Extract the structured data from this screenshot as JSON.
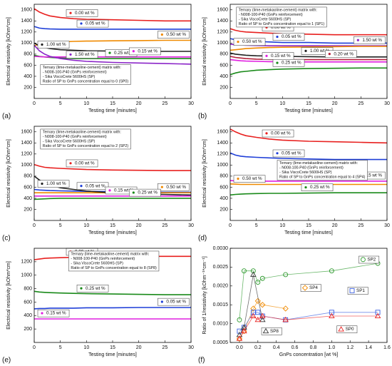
{
  "chart_data": [
    {
      "type": "line",
      "panel_label": "(a)",
      "x_label": "Testing time [minutes]",
      "y_label": "Electrical resistivity [kOhm*cm]",
      "xlim": [
        0,
        30
      ],
      "xticks": [
        0,
        5,
        10,
        15,
        20,
        25,
        30
      ],
      "ylim": [
        0,
        1700
      ],
      "yticks": [
        200,
        400,
        600,
        800,
        1000,
        1200,
        1400,
        1600
      ],
      "note": [
        "Ternary (lime-metakaoline-cement) matrix with:",
        "- N008-100-P40 (GnPs reinforcement)",
        "- Sika ViscoCrete 5600HS (SP)",
        "Ratio of SP to GnPs concentration equal to 0 (SP0)"
      ],
      "x": [
        0,
        1,
        2,
        3,
        5,
        7.5,
        10,
        15,
        20,
        25,
        30
      ],
      "series": [
        {
          "name": "0.00 wt %",
          "color": "#e8201f",
          "values": [
            1620,
            1560,
            1520,
            1490,
            1460,
            1440,
            1430,
            1420,
            1410,
            1400,
            1400
          ]
        },
        {
          "name": "0.05 wt %",
          "color": "#1f3fd8",
          "values": [
            1300,
            1270,
            1260,
            1255,
            1250,
            1250,
            1250,
            1250,
            1250,
            1250,
            1250
          ]
        },
        {
          "name": "0.50 wt %",
          "color": "#f08a00",
          "values": [
            950,
            980,
            1000,
            1010,
            1020,
            1030,
            1035,
            1040,
            1045,
            1050,
            1050
          ]
        },
        {
          "name": "1.00 wt %",
          "color": "#222222",
          "values": [
            1000,
            950,
            920,
            900,
            880,
            870,
            860,
            855,
            850,
            850,
            850
          ]
        },
        {
          "name": "0.25 wt %",
          "color": "#1a8a1a",
          "values": [
            780,
            760,
            750,
            740,
            730,
            720,
            720,
            720,
            720,
            720,
            720
          ]
        },
        {
          "name": "0.15 wt %",
          "color": "#e020e0",
          "values": [
            760,
            755,
            750,
            750,
            750,
            750,
            750,
            750,
            750,
            750,
            750
          ]
        },
        {
          "name": "1.50 wt %",
          "color": "#8b25c8",
          "values": [
            960,
            860,
            800,
            760,
            720,
            690,
            670,
            650,
            640,
            630,
            620
          ]
        }
      ]
    },
    {
      "type": "line",
      "panel_label": "(b)",
      "x_label": "Testing time [minutes]",
      "y_label": "Electrical resistivity [kOhm*cm]",
      "xlim": [
        0,
        30
      ],
      "xticks": [
        0,
        5,
        10,
        15,
        20,
        25,
        30
      ],
      "ylim": [
        0,
        1700
      ],
      "yticks": [
        200,
        400,
        600,
        800,
        1000,
        1200,
        1400,
        1600
      ],
      "note": [
        "Ternary (lime-metakaoline-cement) matrix with:",
        "- N008-100-P40 (GnPs reinforcement)",
        "- Sika ViscoCrete 5600HS (SP)",
        "Ratio of SP to GnPs concentration equal to 1 (SP1)"
      ],
      "x": [
        0,
        1,
        2,
        3,
        5,
        7.5,
        10,
        15,
        20,
        25,
        30
      ],
      "series": [
        {
          "name": "0.00 wt %",
          "color": "#e8201f",
          "values": [
            1260,
            1230,
            1210,
            1200,
            1190,
            1180,
            1170,
            1160,
            1150,
            1150,
            1150
          ]
        },
        {
          "name": "0.05 wt %",
          "color": "#1f3fd8",
          "values": [
            1080,
            1060,
            1050,
            1040,
            1030,
            1020,
            1010,
            1010,
            1000,
            1000,
            1000
          ]
        },
        {
          "name": "1.50 wt %",
          "color": "#8b25c8",
          "values": [
            980,
            970,
            965,
            960,
            955,
            950,
            950,
            950,
            950,
            950,
            950
          ]
        },
        {
          "name": "0.50 wt %",
          "color": "#f08a00",
          "values": [
            870,
            880,
            890,
            900,
            910,
            920,
            925,
            930,
            935,
            940,
            940
          ]
        },
        {
          "name": "1.00 wt %",
          "color": "#222222",
          "values": [
            820,
            800,
            790,
            780,
            770,
            765,
            760,
            755,
            750,
            750,
            750
          ]
        },
        {
          "name": "0.20 wt %",
          "color": "#b5203a",
          "values": [
            760,
            740,
            730,
            720,
            710,
            705,
            700,
            700,
            700,
            700,
            700
          ]
        },
        {
          "name": "0.15 wt %",
          "color": "#e020e0",
          "values": [
            700,
            690,
            680,
            675,
            670,
            665,
            660,
            660,
            660,
            660,
            660
          ]
        },
        {
          "name": "0.25 wt %",
          "color": "#1a8a1a",
          "values": [
            430,
            460,
            480,
            490,
            510,
            520,
            530,
            540,
            545,
            550,
            550
          ]
        }
      ]
    },
    {
      "type": "line",
      "panel_label": "(c)",
      "x_label": "Testing time [minutes]",
      "y_label": "Electrical resistivity [kOhm*cm]",
      "xlim": [
        0,
        30
      ],
      "xticks": [
        0,
        5,
        10,
        15,
        20,
        25,
        30
      ],
      "ylim": [
        0,
        1700
      ],
      "yticks": [
        200,
        400,
        600,
        800,
        1000,
        1200,
        1400,
        1600
      ],
      "note": [
        "Ternary (lime-metakaoline-cement) matrix with:",
        "- N008-100-P40 (GnPs reinforcement)",
        "- Sika ViscoCrete 5600HS (SP)",
        "Ratio of SP to GnPs concentration equal to 2 (SP2)"
      ],
      "x": [
        0,
        1,
        2,
        3,
        5,
        7.5,
        10,
        15,
        20,
        25,
        30
      ],
      "series": [
        {
          "name": "0.00 wt %",
          "color": "#e8201f",
          "values": [
            1010,
            980,
            960,
            950,
            940,
            930,
            920,
            910,
            905,
            900,
            900
          ]
        },
        {
          "name": "0.05 wt %",
          "color": "#1f3fd8",
          "values": [
            560,
            550,
            545,
            540,
            535,
            530,
            525,
            520,
            515,
            510,
            510
          ]
        },
        {
          "name": "0.50 wt %",
          "color": "#f08a00",
          "values": [
            500,
            500,
            500,
            500,
            500,
            500,
            500,
            500,
            500,
            500,
            500
          ]
        },
        {
          "name": "1.00 wt %",
          "color": "#222222",
          "values": [
            800,
            730,
            680,
            640,
            590,
            560,
            530,
            500,
            480,
            470,
            460
          ]
        },
        {
          "name": "0.15 wt %",
          "color": "#e020e0",
          "values": [
            440,
            440,
            440,
            440,
            440,
            440,
            440,
            440,
            440,
            440,
            440
          ]
        },
        {
          "name": "0.25 wt %",
          "color": "#1a8a1a",
          "values": [
            380,
            385,
            390,
            395,
            400,
            400,
            400,
            400,
            400,
            400,
            400
          ]
        }
      ]
    },
    {
      "type": "line",
      "panel_label": "(d)",
      "x_label": "Testing time [minutes]",
      "y_label": "Electrical resistivity [kOhm*cm]",
      "xlim": [
        0,
        30
      ],
      "xticks": [
        0,
        5,
        10,
        15,
        20,
        25,
        30
      ],
      "ylim": [
        0,
        1700
      ],
      "yticks": [
        200,
        400,
        600,
        800,
        1000,
        1200,
        1400,
        1600
      ],
      "note": [
        "Ternary (lime-metakaoline-cement) matrix with:",
        "- N008-100-P40 (GnPs reinforcement)",
        "- Sika ViscoCrete 5600HS (SP)",
        "Ratio of SP to GnPs concentration equal to 4 (SP4)"
      ],
      "x": [
        0,
        1,
        2,
        3,
        5,
        7.5,
        10,
        15,
        20,
        25,
        30
      ],
      "series": [
        {
          "name": "0.00 wt %",
          "color": "#e8201f",
          "values": [
            1650,
            1600,
            1560,
            1530,
            1500,
            1470,
            1450,
            1430,
            1420,
            1410,
            1400
          ]
        },
        {
          "name": "0.05 wt %",
          "color": "#1f3fd8",
          "values": [
            1220,
            1180,
            1160,
            1150,
            1140,
            1130,
            1120,
            1110,
            1100,
            1100,
            1100
          ]
        },
        {
          "name": "0.15 wt %",
          "color": "#e020e0",
          "values": [
            720,
            715,
            710,
            710,
            710,
            710,
            710,
            710,
            710,
            710,
            710
          ]
        },
        {
          "name": "0.50 wt %",
          "color": "#f08a00",
          "values": [
            660,
            655,
            650,
            650,
            650,
            650,
            650,
            650,
            650,
            650,
            650
          ]
        },
        {
          "name": "0.25 wt %",
          "color": "#1a8a1a",
          "values": [
            460,
            470,
            475,
            480,
            485,
            490,
            490,
            495,
            500,
            500,
            500
          ]
        }
      ]
    },
    {
      "type": "line",
      "panel_label": "(e)",
      "x_label": "Testing time [minutes]",
      "y_label": "Electrical resistivity [kOhm*cm]",
      "xlim": [
        0,
        30
      ],
      "xticks": [
        0,
        5,
        10,
        15,
        20,
        25,
        30
      ],
      "ylim": [
        0,
        1400
      ],
      "yticks": [
        200,
        400,
        600,
        800,
        1000,
        1200
      ],
      "note": [
        "Ternary (lime-metakaoline-cement) matrix with:",
        "- N008-100-P40 (GnPs reinforcement)",
        "- Sika ViscoCrete 5600HS (SP)",
        "Ratio of SP to GnPs concentration equal to 8 (SP8)"
      ],
      "x": [
        0,
        1,
        2,
        3,
        5,
        7.5,
        10,
        15,
        20,
        25,
        30
      ],
      "series": [
        {
          "name": "0.00 wt %",
          "color": "#e8201f",
          "values": [
            1230,
            1240,
            1250,
            1255,
            1260,
            1265,
            1270,
            1275,
            1280,
            1280,
            1280
          ]
        },
        {
          "name": "0.25 wt %",
          "color": "#1a8a1a",
          "values": [
            760,
            750,
            745,
            740,
            735,
            730,
            725,
            720,
            715,
            710,
            710
          ]
        },
        {
          "name": "0.05 wt %",
          "color": "#1f3fd8",
          "values": [
            500,
            505,
            505,
            510,
            510,
            510,
            515,
            515,
            520,
            520,
            520
          ]
        },
        {
          "name": "0.15 wt %",
          "color": "#e020e0",
          "values": [
            350,
            350,
            350,
            350,
            350,
            350,
            350,
            350,
            350,
            350,
            350
          ]
        }
      ]
    },
    {
      "type": "scatter",
      "panel_label": "(f)",
      "x_label": "GnPs concentration [wt %]",
      "y_label": "Ratio of 1/resistivity [kOhm⁻¹*cm⁻¹]",
      "xlim": [
        -0.1,
        1.6
      ],
      "xticks": [
        {
          "value": 0,
          "label": "0.0"
        },
        0.2,
        0.4,
        0.6,
        0.8,
        {
          "value": 1,
          "label": "1.0"
        },
        1.2,
        1.4,
        1.6
      ],
      "ylim": [
        0.0005,
        0.003
      ],
      "yticks": [
        0.0005,
        {
          "value": 0.001,
          "label": "0.0010"
        },
        0.0015,
        {
          "value": 0.002,
          "label": "0.0020"
        },
        0.0025,
        {
          "value": 0.003,
          "label": "0.0030"
        }
      ],
      "series": [
        {
          "name": "SP2",
          "color": "#2e9a2e",
          "marker": "circle",
          "x": [
            0,
            0.05,
            0.15,
            0.2,
            0.25,
            0.5,
            1,
            1.5
          ],
          "values": [
            0.0011,
            0.0024,
            0.0024,
            0.0021,
            0.0022,
            0.0023,
            0.0024,
            0.0026
          ]
        },
        {
          "name": "SP4",
          "color": "#f08a00",
          "marker": "diamond",
          "x": [
            0,
            0.05,
            0.15,
            0.2,
            0.25,
            0.5
          ],
          "values": [
            0.0006,
            0.0008,
            0.0014,
            0.0016,
            0.0015,
            0.0014
          ]
        },
        {
          "name": "SP1",
          "color": "#3a5fe0",
          "marker": "square",
          "x": [
            0,
            0.05,
            0.15,
            0.2,
            0.25,
            0.5,
            1,
            1.5
          ],
          "values": [
            0.0008,
            0.0009,
            0.0013,
            0.0013,
            0.0012,
            0.0011,
            0.0013,
            0.0013
          ]
        },
        {
          "name": "SP8",
          "color": "#333333",
          "marker": "triangle",
          "x": [
            0,
            0.05,
            0.15,
            0.25
          ],
          "values": [
            0.0007,
            0.0009,
            0.0023,
            0.0011
          ]
        },
        {
          "name": "SP0",
          "color": "#e8201f",
          "marker": "triangle",
          "x": [
            0,
            0.05,
            0.15,
            0.2,
            0.25,
            0.5,
            1,
            1.5
          ],
          "values": [
            0.0006,
            0.0008,
            0.0012,
            0.0011,
            0.0012,
            0.0011,
            0.0012,
            0.0012
          ]
        }
      ]
    }
  ]
}
